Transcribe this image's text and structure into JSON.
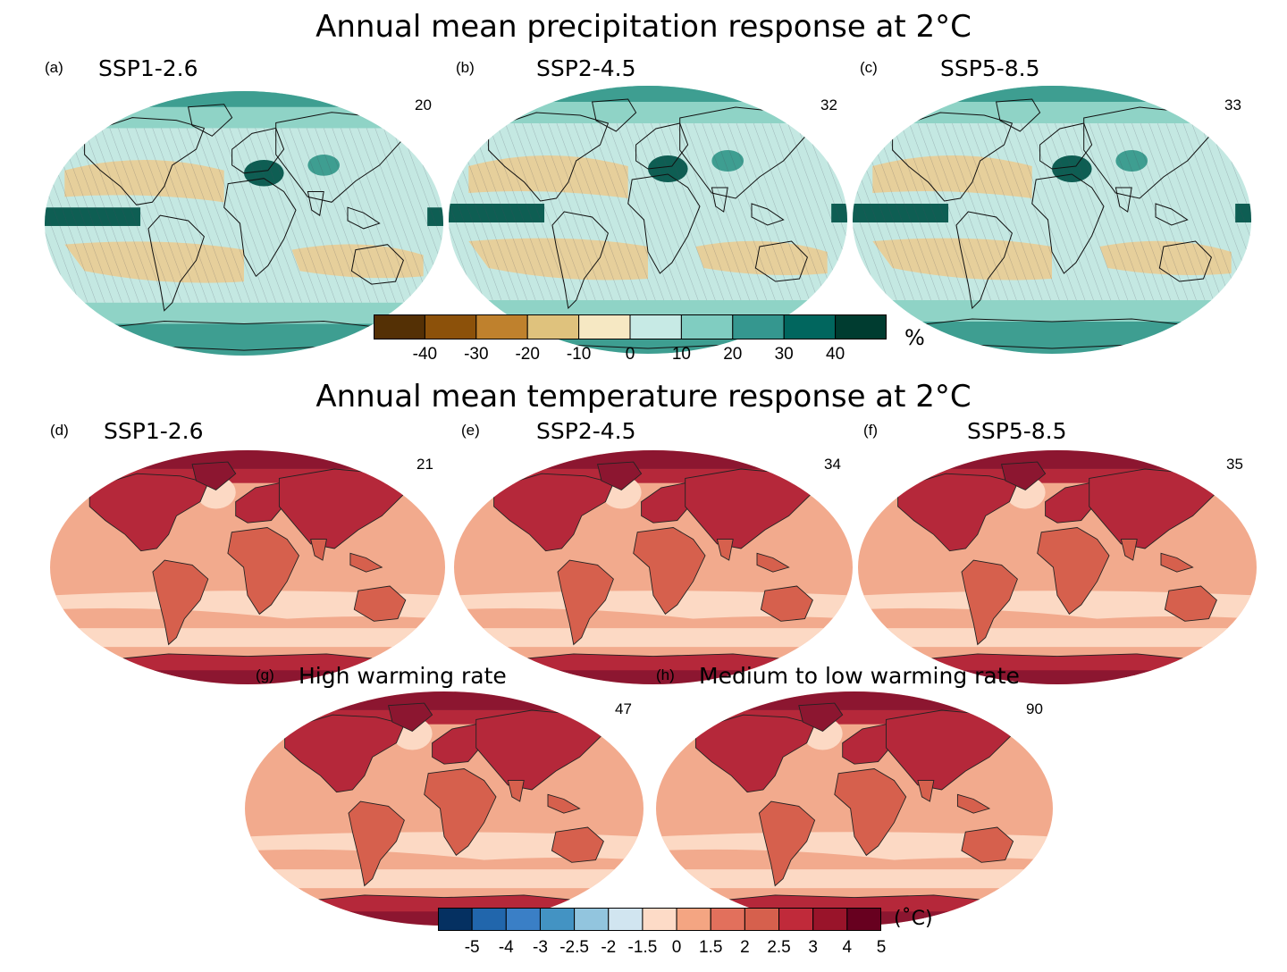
{
  "precip": {
    "title": "Annual mean precipitation response at 2°C",
    "panels": [
      {
        "letter": "(a)",
        "scenario": "SSP1-2.6",
        "count": "20"
      },
      {
        "letter": "(b)",
        "scenario": "SSP2-4.5",
        "count": "32"
      },
      {
        "letter": "(c)",
        "scenario": "SSP5-8.5",
        "count": "33"
      }
    ],
    "colorbar": {
      "colors": [
        "#543005",
        "#8c510a",
        "#bf812d",
        "#dfc27d",
        "#f6e8c3",
        "#c7eae5",
        "#80cdc1",
        "#35978f",
        "#01665e",
        "#003c30"
      ],
      "ticks": [
        "-40",
        "-30",
        "-20",
        "-10",
        "0",
        "10",
        "20",
        "30",
        "40"
      ],
      "unit": "%"
    },
    "palette": {
      "ocean": "#c4e8e2",
      "dry": "#e6cf9b",
      "mid": "#8fd3c6",
      "wet": "#3e9e91",
      "verywet": "#0e5e53"
    }
  },
  "temp": {
    "title": "Annual mean temperature response at 2°C",
    "panels": [
      {
        "letter": "(d)",
        "scenario": "SSP1-2.6",
        "count": "21"
      },
      {
        "letter": "(e)",
        "scenario": "SSP2-4.5",
        "count": "34"
      },
      {
        "letter": "(f)",
        "scenario": "SSP5-8.5",
        "count": "35"
      },
      {
        "letter": "(g)",
        "scenario": "High warming rate",
        "count": "47"
      },
      {
        "letter": "(h)",
        "scenario": "Medium to low warming rate",
        "count": "90"
      }
    ],
    "colorbar": {
      "colors": [
        "#053061",
        "#2166ac",
        "#3a7fc6",
        "#4393c3",
        "#92c5de",
        "#d1e5f0",
        "#fddbc7",
        "#f4a582",
        "#e2705c",
        "#d6604d",
        "#c02a3a",
        "#99142a",
        "#67001f"
      ],
      "ticks": [
        "-5",
        "-4",
        "-3",
        "-2.5",
        "-2",
        "-1.5",
        "0",
        "1.5",
        "2",
        "2.5",
        "3",
        "4",
        "5"
      ],
      "unit": "(˚C)"
    },
    "palette": {
      "ocean": "#f2aa8d",
      "cool": "#fcd9c4",
      "land": "#d6604d",
      "hot": "#b5283a",
      "arctic": "#8c1630"
    }
  }
}
